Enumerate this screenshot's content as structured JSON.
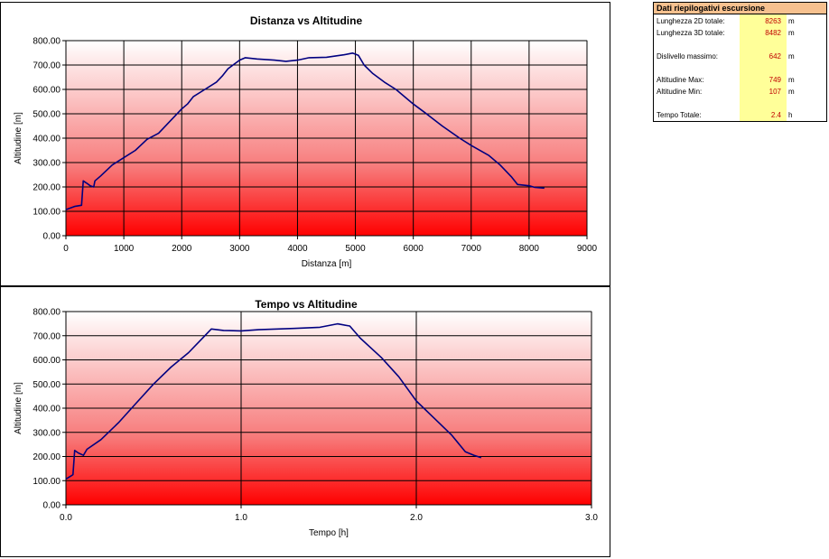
{
  "chart_data": [
    {
      "type": "line",
      "title": "Distanza vs Altitudine",
      "xlabel": "Distanza [m]",
      "ylabel": "Altitudine [m]",
      "xlim": [
        0,
        9000
      ],
      "ylim": [
        0,
        800
      ],
      "x_ticks": [
        "0",
        "1000",
        "2000",
        "3000",
        "4000",
        "5000",
        "6000",
        "7000",
        "8000",
        "9000"
      ],
      "y_ticks": [
        "0.00",
        "100.00",
        "200.00",
        "300.00",
        "400.00",
        "500.00",
        "600.00",
        "700.00",
        "800.00"
      ],
      "grid": true,
      "background": "gradient red (bottom) to white (top)",
      "series": [
        {
          "color": "#000080",
          "points": [
            [
              0,
              107
            ],
            [
              150,
              120
            ],
            [
              270,
              125
            ],
            [
              300,
              225
            ],
            [
              360,
              215
            ],
            [
              420,
              205
            ],
            [
              480,
              200
            ],
            [
              500,
              225
            ],
            [
              600,
              245
            ],
            [
              800,
              290
            ],
            [
              1000,
              320
            ],
            [
              1200,
              350
            ],
            [
              1400,
              395
            ],
            [
              1600,
              420
            ],
            [
              1800,
              470
            ],
            [
              2000,
              520
            ],
            [
              2100,
              540
            ],
            [
              2200,
              570
            ],
            [
              2400,
              600
            ],
            [
              2600,
              630
            ],
            [
              2700,
              655
            ],
            [
              2800,
              685
            ],
            [
              3000,
              720
            ],
            [
              3100,
              730
            ],
            [
              3300,
              725
            ],
            [
              3600,
              720
            ],
            [
              3800,
              715
            ],
            [
              4000,
              720
            ],
            [
              4200,
              730
            ],
            [
              4500,
              732
            ],
            [
              4800,
              742
            ],
            [
              4950,
              749
            ],
            [
              5050,
              740
            ],
            [
              5150,
              700
            ],
            [
              5300,
              665
            ],
            [
              5500,
              630
            ],
            [
              5700,
              600
            ],
            [
              6000,
              540
            ],
            [
              6200,
              505
            ],
            [
              6500,
              450
            ],
            [
              6800,
              400
            ],
            [
              7000,
              370
            ],
            [
              7300,
              330
            ],
            [
              7500,
              290
            ],
            [
              7700,
              240
            ],
            [
              7800,
              210
            ],
            [
              8000,
              205
            ],
            [
              8100,
              198
            ],
            [
              8263,
              195
            ]
          ]
        }
      ]
    },
    {
      "type": "line",
      "title": "Tempo vs Altitudine",
      "xlabel": "Tempo [h]",
      "ylabel": "Altitudine [m]",
      "xlim": [
        0,
        3.0
      ],
      "ylim": [
        0,
        800
      ],
      "x_ticks": [
        "0.0",
        "1.0",
        "2.0",
        "3.0"
      ],
      "y_ticks": [
        "0.00",
        "100.00",
        "200.00",
        "300.00",
        "400.00",
        "500.00",
        "600.00",
        "700.00",
        "800.00"
      ],
      "grid": true,
      "background": "gradient red (bottom) to white (top)",
      "series": [
        {
          "color": "#000080",
          "points": [
            [
              0,
              107
            ],
            [
              0.03,
              120
            ],
            [
              0.04,
              125
            ],
            [
              0.05,
              225
            ],
            [
              0.07,
              215
            ],
            [
              0.1,
              205
            ],
            [
              0.12,
              230
            ],
            [
              0.2,
              270
            ],
            [
              0.3,
              340
            ],
            [
              0.4,
              420
            ],
            [
              0.5,
              500
            ],
            [
              0.6,
              570
            ],
            [
              0.7,
              630
            ],
            [
              0.78,
              690
            ],
            [
              0.83,
              728
            ],
            [
              0.9,
              722
            ],
            [
              1.0,
              720
            ],
            [
              1.1,
              725
            ],
            [
              1.3,
              730
            ],
            [
              1.45,
              735
            ],
            [
              1.55,
              749
            ],
            [
              1.62,
              740
            ],
            [
              1.68,
              690
            ],
            [
              1.8,
              610
            ],
            [
              1.9,
              530
            ],
            [
              2.0,
              430
            ],
            [
              2.1,
              360
            ],
            [
              2.2,
              290
            ],
            [
              2.28,
              220
            ],
            [
              2.33,
              205
            ],
            [
              2.37,
              195
            ]
          ]
        }
      ]
    }
  ],
  "summary": {
    "title": "Dati riepilogativi escursione",
    "rows": [
      {
        "label": "Lunghezza 2D totale:",
        "value": "8263",
        "unit": "m"
      },
      {
        "label": "Lunghezza 3D totale:",
        "value": "8482",
        "unit": "m"
      },
      {
        "label": "Dislivello massimo:",
        "value": "642",
        "unit": "m"
      },
      {
        "label": "Altitudine Max:",
        "value": "749",
        "unit": "m"
      },
      {
        "label": "Altitudine Min:",
        "value": "107",
        "unit": "m"
      },
      {
        "label": "Tempo Totale:",
        "value": "2.4",
        "unit": "h"
      }
    ]
  }
}
